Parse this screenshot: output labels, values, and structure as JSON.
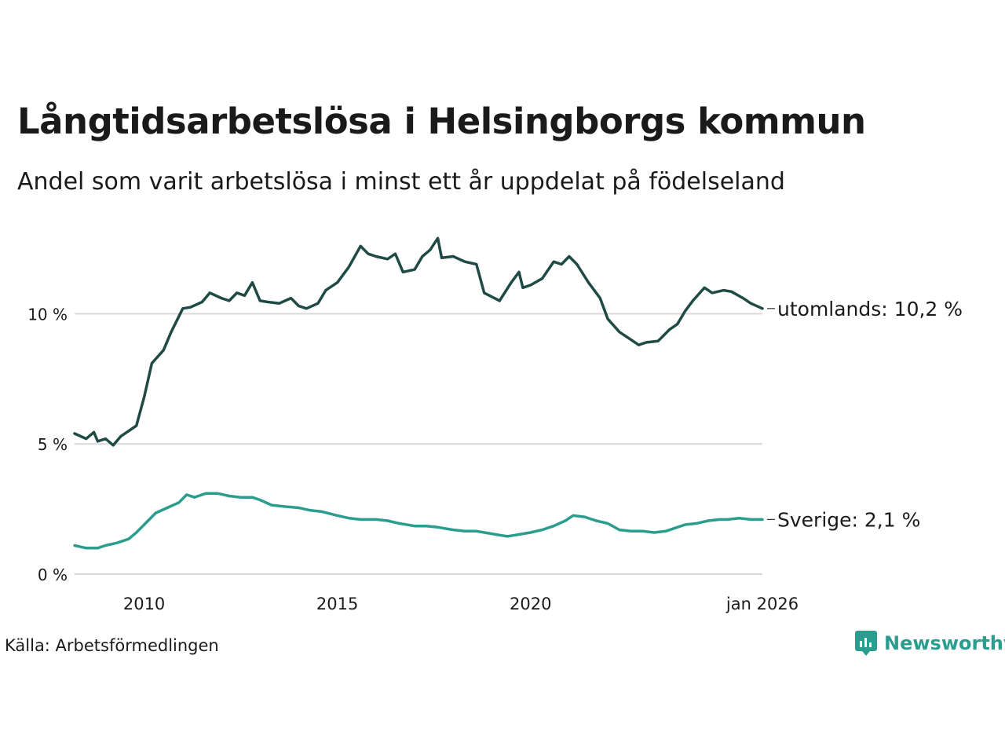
{
  "header": {
    "title": "Långtidsarbetslösa i Helsingborgs kommun",
    "subtitle": "Andel som varit arbetslösa i minst ett år uppdelat på födelseland"
  },
  "footer": {
    "source": "Källa: Arbetsförmedlingen",
    "brand": "Newsworthy"
  },
  "colors": {
    "utomlands": "#1f4a45",
    "sverige": "#2a9d8f",
    "grid": "#d9d9d9",
    "brand": "#2a9d8f"
  },
  "chart_data": {
    "type": "line",
    "title": "Långtidsarbetslösa i Helsingborgs kommun",
    "subtitle": "Andel som varit arbetslösa i minst ett år uppdelat på födelseland",
    "xlabel": "",
    "ylabel": "",
    "x_range": [
      2008.2,
      2026.0
    ],
    "ylim": [
      0,
      13
    ],
    "y_ticks": [
      0,
      5,
      10
    ],
    "y_tick_labels": [
      "0 %",
      "5 %",
      "10 %"
    ],
    "x_ticks": [
      2010,
      2015,
      2020,
      2026
    ],
    "x_tick_labels": [
      "2010",
      "2015",
      "2020",
      "jan 2026"
    ],
    "grid": "horizontal",
    "series": [
      {
        "name": "utomlands",
        "end_label": "utomlands: 10,2 %",
        "points": [
          [
            2008.2,
            5.4
          ],
          [
            2008.5,
            5.2
          ],
          [
            2008.7,
            5.45
          ],
          [
            2008.8,
            5.1
          ],
          [
            2009.0,
            5.2
          ],
          [
            2009.2,
            4.95
          ],
          [
            2009.4,
            5.3
          ],
          [
            2009.6,
            5.5
          ],
          [
            2009.8,
            5.7
          ],
          [
            2010.0,
            6.8
          ],
          [
            2010.2,
            8.1
          ],
          [
            2010.5,
            8.6
          ],
          [
            2010.7,
            9.3
          ],
          [
            2011.0,
            10.2
          ],
          [
            2011.2,
            10.25
          ],
          [
            2011.5,
            10.45
          ],
          [
            2011.7,
            10.8
          ],
          [
            2012.0,
            10.6
          ],
          [
            2012.2,
            10.5
          ],
          [
            2012.4,
            10.8
          ],
          [
            2012.6,
            10.7
          ],
          [
            2012.8,
            11.2
          ],
          [
            2013.0,
            10.5
          ],
          [
            2013.2,
            10.45
          ],
          [
            2013.5,
            10.4
          ],
          [
            2013.8,
            10.6
          ],
          [
            2014.0,
            10.3
          ],
          [
            2014.2,
            10.2
          ],
          [
            2014.5,
            10.4
          ],
          [
            2014.7,
            10.9
          ],
          [
            2015.0,
            11.2
          ],
          [
            2015.3,
            11.8
          ],
          [
            2015.6,
            12.6
          ],
          [
            2015.8,
            12.3
          ],
          [
            2016.0,
            12.2
          ],
          [
            2016.3,
            12.1
          ],
          [
            2016.5,
            12.3
          ],
          [
            2016.7,
            11.6
          ],
          [
            2017.0,
            11.7
          ],
          [
            2017.2,
            12.2
          ],
          [
            2017.4,
            12.45
          ],
          [
            2017.6,
            12.9
          ],
          [
            2017.7,
            12.15
          ],
          [
            2018.0,
            12.2
          ],
          [
            2018.3,
            12.0
          ],
          [
            2018.6,
            11.9
          ],
          [
            2018.8,
            10.8
          ],
          [
            2019.0,
            10.65
          ],
          [
            2019.2,
            10.5
          ],
          [
            2019.5,
            11.2
          ],
          [
            2019.7,
            11.6
          ],
          [
            2019.8,
            11.0
          ],
          [
            2020.0,
            11.1
          ],
          [
            2020.3,
            11.35
          ],
          [
            2020.6,
            12.0
          ],
          [
            2020.8,
            11.9
          ],
          [
            2021.0,
            12.2
          ],
          [
            2021.2,
            11.9
          ],
          [
            2021.5,
            11.2
          ],
          [
            2021.8,
            10.6
          ],
          [
            2022.0,
            9.8
          ],
          [
            2022.3,
            9.3
          ],
          [
            2022.6,
            9.0
          ],
          [
            2022.8,
            8.8
          ],
          [
            2023.0,
            8.9
          ],
          [
            2023.3,
            8.95
          ],
          [
            2023.6,
            9.4
          ],
          [
            2023.8,
            9.6
          ],
          [
            2024.0,
            10.1
          ],
          [
            2024.2,
            10.5
          ],
          [
            2024.5,
            11.0
          ],
          [
            2024.7,
            10.8
          ],
          [
            2025.0,
            10.9
          ],
          [
            2025.2,
            10.85
          ],
          [
            2025.5,
            10.6
          ],
          [
            2025.7,
            10.4
          ],
          [
            2026.0,
            10.2
          ]
        ]
      },
      {
        "name": "Sverige",
        "end_label": "Sverige:  2,1 %",
        "points": [
          [
            2008.2,
            1.1
          ],
          [
            2008.5,
            1.0
          ],
          [
            2008.8,
            1.0
          ],
          [
            2009.0,
            1.1
          ],
          [
            2009.3,
            1.2
          ],
          [
            2009.6,
            1.35
          ],
          [
            2009.8,
            1.6
          ],
          [
            2010.0,
            1.9
          ],
          [
            2010.3,
            2.35
          ],
          [
            2010.6,
            2.55
          ],
          [
            2010.9,
            2.75
          ],
          [
            2011.1,
            3.05
          ],
          [
            2011.3,
            2.95
          ],
          [
            2011.6,
            3.1
          ],
          [
            2011.9,
            3.1
          ],
          [
            2012.2,
            3.0
          ],
          [
            2012.5,
            2.95
          ],
          [
            2012.8,
            2.95
          ],
          [
            2013.0,
            2.85
          ],
          [
            2013.3,
            2.65
          ],
          [
            2013.6,
            2.6
          ],
          [
            2014.0,
            2.55
          ],
          [
            2014.3,
            2.45
          ],
          [
            2014.6,
            2.4
          ],
          [
            2015.0,
            2.25
          ],
          [
            2015.3,
            2.15
          ],
          [
            2015.6,
            2.1
          ],
          [
            2016.0,
            2.1
          ],
          [
            2016.3,
            2.05
          ],
          [
            2016.6,
            1.95
          ],
          [
            2017.0,
            1.85
          ],
          [
            2017.3,
            1.85
          ],
          [
            2017.6,
            1.8
          ],
          [
            2018.0,
            1.7
          ],
          [
            2018.3,
            1.65
          ],
          [
            2018.6,
            1.65
          ],
          [
            2019.0,
            1.55
          ],
          [
            2019.2,
            1.5
          ],
          [
            2019.4,
            1.45
          ],
          [
            2019.6,
            1.5
          ],
          [
            2019.8,
            1.55
          ],
          [
            2020.0,
            1.6
          ],
          [
            2020.3,
            1.7
          ],
          [
            2020.6,
            1.85
          ],
          [
            2020.9,
            2.05
          ],
          [
            2021.1,
            2.25
          ],
          [
            2021.4,
            2.2
          ],
          [
            2021.7,
            2.05
          ],
          [
            2022.0,
            1.95
          ],
          [
            2022.3,
            1.7
          ],
          [
            2022.6,
            1.65
          ],
          [
            2022.9,
            1.65
          ],
          [
            2023.2,
            1.6
          ],
          [
            2023.5,
            1.65
          ],
          [
            2023.8,
            1.8
          ],
          [
            2024.0,
            1.9
          ],
          [
            2024.3,
            1.95
          ],
          [
            2024.6,
            2.05
          ],
          [
            2024.9,
            2.1
          ],
          [
            2025.1,
            2.1
          ],
          [
            2025.4,
            2.15
          ],
          [
            2025.7,
            2.1
          ],
          [
            2026.0,
            2.1
          ]
        ]
      }
    ]
  }
}
